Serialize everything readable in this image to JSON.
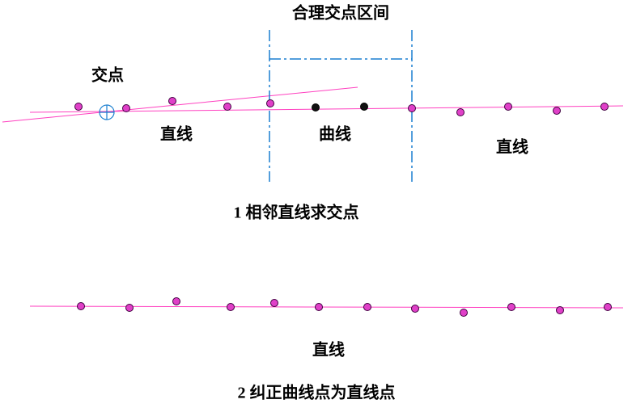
{
  "panel1": {
    "interval_label": "合理交点区间",
    "intersection_label": "交点",
    "left_label": "直线",
    "middle_label": "曲线",
    "right_label": "直线",
    "caption": "1 相邻直线求交点"
  },
  "panel2": {
    "line_label": "直线",
    "caption": "2 纠正曲线点为直线点"
  }
}
